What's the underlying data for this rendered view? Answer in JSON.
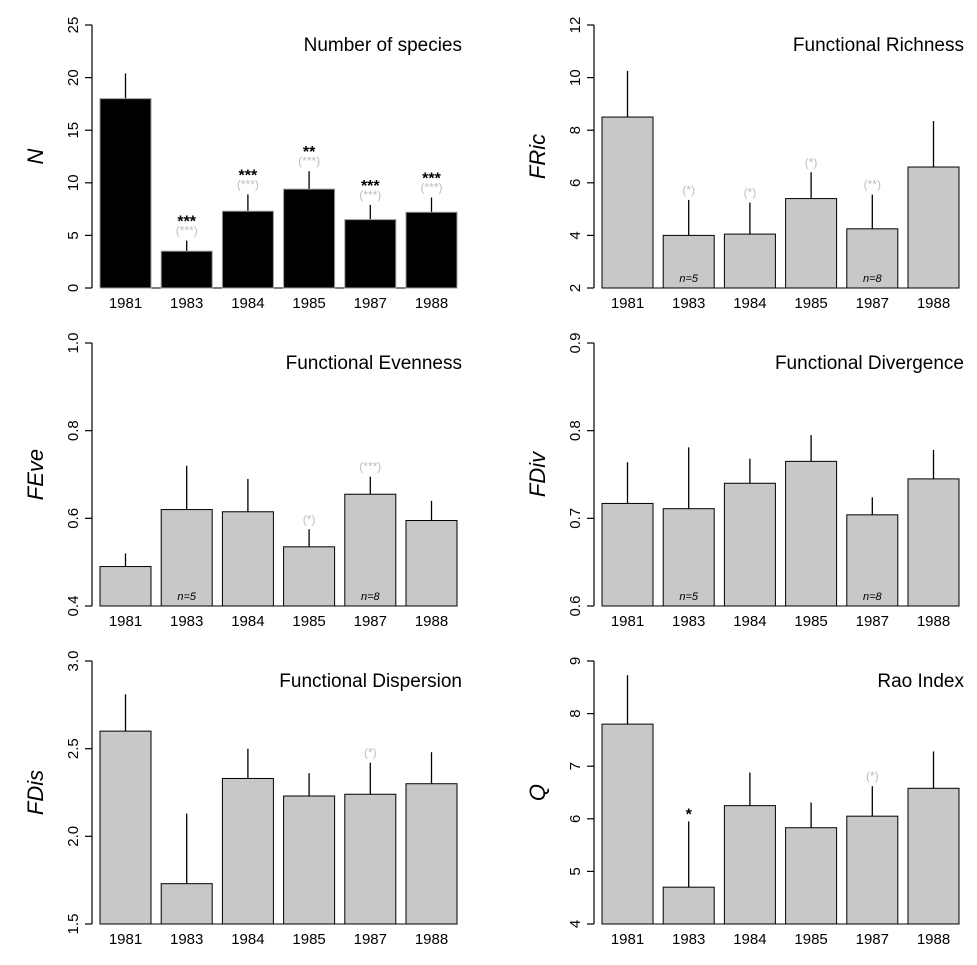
{
  "colors": {
    "black_bar": "#000000",
    "grey_bar": "#c8c8c8",
    "sig_grey": "#bdbdbd",
    "sig_black": "#000000"
  },
  "chart_data": [
    {
      "type": "bar",
      "title": "Number of species",
      "ylabel": "N",
      "ylim": [
        0,
        25
      ],
      "yticks": [
        0,
        5,
        10,
        15,
        20,
        25
      ],
      "categories": [
        "1981",
        "1983",
        "1984",
        "1985",
        "1987",
        "1988"
      ],
      "values": [
        18.0,
        3.5,
        7.3,
        9.4,
        6.5,
        7.2
      ],
      "errors": [
        2.4,
        1.0,
        1.6,
        1.7,
        1.4,
        1.4
      ],
      "bar_color": "#000000",
      "sig_black": [
        "",
        "***",
        "***",
        "**",
        "***",
        "***"
      ],
      "sig_grey": [
        "",
        "(***)",
        "(***)",
        "(***)",
        "(***)",
        "(***)"
      ],
      "n_labels": [
        "",
        "",
        "",
        "",
        "",
        ""
      ]
    },
    {
      "type": "bar",
      "title": "Functional Richness",
      "ylabel": "FRic",
      "ylim": [
        2,
        12
      ],
      "yticks": [
        2,
        4,
        6,
        8,
        10,
        12
      ],
      "categories": [
        "1981",
        "1983",
        "1984",
        "1985",
        "1987",
        "1988"
      ],
      "values": [
        8.5,
        4.0,
        4.05,
        5.4,
        4.25,
        6.6
      ],
      "errors": [
        1.75,
        1.35,
        1.2,
        1.0,
        1.3,
        1.75
      ],
      "bar_color": "#c8c8c8",
      "sig_black": [
        "",
        "",
        "",
        "",
        "",
        ""
      ],
      "sig_grey": [
        "",
        "(*)",
        "(*)",
        "(*)",
        "(**)",
        ""
      ],
      "n_labels": [
        "",
        "n=5",
        "",
        "",
        "n=8",
        ""
      ]
    },
    {
      "type": "bar",
      "title": "Functional Evenness",
      "ylabel": "FEve",
      "ylim": [
        0.4,
        1.0
      ],
      "yticks": [
        0.4,
        0.6,
        0.8,
        1.0
      ],
      "ytick_labels": [
        "0.4",
        "0.6",
        "0.8",
        "1.0"
      ],
      "categories": [
        "1981",
        "1983",
        "1984",
        "1985",
        "1987",
        "1988"
      ],
      "values": [
        0.49,
        0.62,
        0.615,
        0.535,
        0.655,
        0.595
      ],
      "errors": [
        0.03,
        0.1,
        0.075,
        0.04,
        0.04,
        0.045
      ],
      "bar_color": "#c8c8c8",
      "sig_black": [
        "",
        "",
        "",
        "",
        "",
        ""
      ],
      "sig_grey": [
        "",
        "",
        "",
        "(*)",
        "(***)",
        ""
      ],
      "n_labels": [
        "",
        "n=5",
        "",
        "",
        "n=8",
        ""
      ]
    },
    {
      "type": "bar",
      "title": "Functional Divergence",
      "ylabel": "FDiv",
      "ylim": [
        0.6,
        0.9
      ],
      "yticks": [
        0.6,
        0.7,
        0.8,
        0.9
      ],
      "ytick_labels": [
        "0.6",
        "0.7",
        "0.8",
        "0.9"
      ],
      "categories": [
        "1981",
        "1983",
        "1984",
        "1985",
        "1987",
        "1988"
      ],
      "values": [
        0.717,
        0.711,
        0.74,
        0.765,
        0.704,
        0.745
      ],
      "errors": [
        0.047,
        0.07,
        0.028,
        0.03,
        0.02,
        0.033
      ],
      "bar_color": "#c8c8c8",
      "sig_black": [
        "",
        "",
        "",
        "",
        "",
        ""
      ],
      "sig_grey": [
        "",
        "",
        "",
        "",
        "",
        ""
      ],
      "n_labels": [
        "",
        "n=5",
        "",
        "",
        "n=8",
        ""
      ]
    },
    {
      "type": "bar",
      "title": "Functional Dispersion",
      "ylabel": "FDis",
      "ylim": [
        1.5,
        3.0
      ],
      "yticks": [
        1.5,
        2.0,
        2.5,
        3.0
      ],
      "ytick_labels": [
        "1.5",
        "2.0",
        "2.5",
        "3.0"
      ],
      "categories": [
        "1981",
        "1983",
        "1984",
        "1985",
        "1987",
        "1988"
      ],
      "values": [
        2.6,
        1.73,
        2.33,
        2.23,
        2.24,
        2.3
      ],
      "errors": [
        0.21,
        0.4,
        0.17,
        0.13,
        0.18,
        0.18
      ],
      "bar_color": "#c8c8c8",
      "sig_black": [
        "",
        "",
        "",
        "",
        "",
        ""
      ],
      "sig_grey": [
        "",
        "",
        "",
        "",
        "(*)",
        ""
      ],
      "n_labels": [
        "",
        "",
        "",
        "",
        "",
        ""
      ]
    },
    {
      "type": "bar",
      "title": "Rao Index",
      "ylabel": "Q",
      "ylim": [
        4,
        9
      ],
      "yticks": [
        4,
        5,
        6,
        7,
        8,
        9
      ],
      "categories": [
        "1981",
        "1983",
        "1984",
        "1985",
        "1987",
        "1988"
      ],
      "values": [
        7.8,
        4.7,
        6.25,
        5.83,
        6.05,
        6.58
      ],
      "errors": [
        0.93,
        1.25,
        0.63,
        0.48,
        0.57,
        0.7
      ],
      "bar_color": "#c8c8c8",
      "sig_black": [
        "",
        "*",
        "",
        "",
        "",
        ""
      ],
      "sig_grey": [
        "",
        "",
        "",
        "",
        "(*)",
        ""
      ],
      "n_labels": [
        "",
        "",
        "",
        "",
        "",
        ""
      ]
    }
  ]
}
